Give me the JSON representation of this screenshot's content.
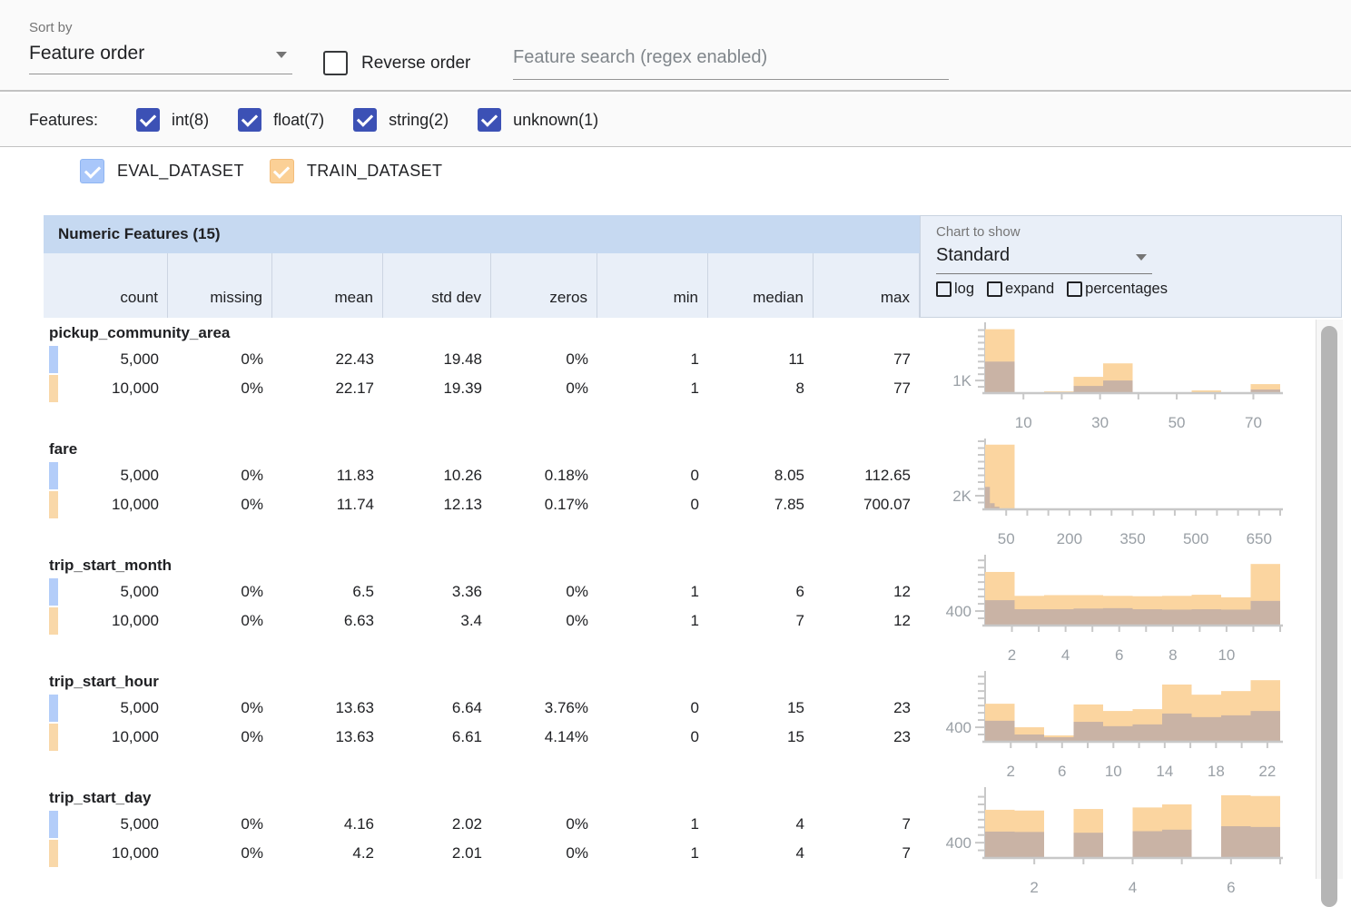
{
  "toolbar": {
    "sort_by_label": "Sort by",
    "sort_by_value": "Feature order",
    "reverse_label": "Reverse order",
    "search_placeholder": "Feature search (regex enabled)"
  },
  "features_bar": {
    "label": "Features:",
    "types": [
      {
        "key": "int",
        "label": "int(8)",
        "checked": true
      },
      {
        "key": "float",
        "label": "float(7)",
        "checked": true
      },
      {
        "key": "string",
        "label": "string(2)",
        "checked": true
      },
      {
        "key": "unknown",
        "label": "unknown(1)",
        "checked": true
      }
    ]
  },
  "datasets": [
    {
      "key": "eval",
      "name": "EVAL_DATASET",
      "checked": true,
      "checkbox_fill": "#a9c7fa",
      "checkbox_border": "#8fb5f2",
      "swatch": "#b3cdf9"
    },
    {
      "key": "train",
      "name": "TRAIN_DATASET",
      "checked": true,
      "checkbox_fill": "#fbd096",
      "checkbox_border": "#f3bd7a",
      "swatch": "#f9d8a9"
    }
  ],
  "table": {
    "title": "Numeric Features (15)",
    "columns": [
      "count",
      "missing",
      "mean",
      "std dev",
      "zeros",
      "min",
      "median",
      "max"
    ]
  },
  "chart_controls": {
    "label": "Chart to show",
    "value": "Standard",
    "options": [
      {
        "key": "log",
        "label": "log",
        "checked": false
      },
      {
        "key": "expand",
        "label": "expand",
        "checked": false
      },
      {
        "key": "percentages",
        "label": "percentages",
        "checked": false
      }
    ]
  },
  "colors": {
    "type_checkbox": "#3c51b5",
    "header_band": "#c6d9f1",
    "subheader_band": "#e9eff8",
    "train_bar": "#fbd5a0",
    "overlap_bar": "#c9b3a5",
    "axis": "#c8c8c8",
    "axis_label": "#9aa0a6"
  },
  "features": [
    {
      "name": "pickup_community_area",
      "rows": [
        {
          "dataset": "eval",
          "values": [
            "5,000",
            "0%",
            "22.43",
            "19.48",
            "0%",
            "1",
            "11",
            "77"
          ]
        },
        {
          "dataset": "train",
          "values": [
            "10,000",
            "0%",
            "22.17",
            "19.39",
            "0%",
            "1",
            "8",
            "77"
          ]
        }
      ],
      "histogram": {
        "y_label": "1K",
        "y_label_value": 1000,
        "y_max": 5400,
        "x_range": [
          0,
          77
        ],
        "x_tick_step": 10,
        "x_labels": [
          10,
          30,
          50,
          70
        ],
        "train_bars": [
          [
            0,
            7.7,
            5070
          ],
          [
            7.7,
            15.4,
            70
          ],
          [
            15.4,
            23.1,
            140
          ],
          [
            23.1,
            30.8,
            1290
          ],
          [
            30.8,
            38.5,
            2360
          ],
          [
            53.9,
            61.6,
            215
          ],
          [
            69.3,
            77,
            715
          ]
        ],
        "overlap_bars": [
          [
            0,
            7.7,
            2500
          ],
          [
            15.4,
            23.1,
            50
          ],
          [
            23.1,
            30.8,
            570
          ],
          [
            30.8,
            38.5,
            1000
          ],
          [
            53.9,
            61.6,
            70
          ],
          [
            69.3,
            77,
            285
          ]
        ]
      }
    },
    {
      "name": "fare",
      "rows": [
        {
          "dataset": "eval",
          "values": [
            "5,000",
            "0%",
            "11.83",
            "10.26",
            "0.18%",
            "0",
            "8.05",
            "112.65"
          ]
        },
        {
          "dataset": "train",
          "values": [
            "10,000",
            "0%",
            "11.74",
            "12.13",
            "0.17%",
            "0",
            "7.85",
            "700.07"
          ]
        }
      ],
      "histogram": {
        "y_label": "2K",
        "y_label_value": 2000,
        "y_max": 10000,
        "x_range": [
          0,
          700
        ],
        "x_tick_step": 50,
        "x_labels": [
          50,
          200,
          350,
          500,
          650
        ],
        "train_bars": [
          [
            0,
            70,
            9500
          ]
        ],
        "overlap_bars": [
          [
            0,
            11.3,
            3300
          ],
          [
            11.3,
            22.6,
            900
          ],
          [
            22.6,
            33.9,
            380
          ]
        ]
      }
    },
    {
      "name": "trip_start_month",
      "rows": [
        {
          "dataset": "eval",
          "values": [
            "5,000",
            "0%",
            "6.5",
            "3.36",
            "0%",
            "1",
            "6",
            "12"
          ]
        },
        {
          "dataset": "train",
          "values": [
            "10,000",
            "0%",
            "6.63",
            "3.4",
            "0%",
            "1",
            "7",
            "12"
          ]
        }
      ],
      "histogram": {
        "y_label": "400",
        "y_label_value": 400,
        "y_max": 1880,
        "x_range": [
          1,
          12
        ],
        "x_tick_step": 1,
        "x_labels": [
          2,
          4,
          6,
          8,
          10
        ],
        "train_bars": [
          [
            1,
            2.1,
            1480
          ],
          [
            2.1,
            3.2,
            820
          ],
          [
            3.2,
            4.3,
            840
          ],
          [
            4.3,
            5.4,
            840
          ],
          [
            5.4,
            6.5,
            820
          ],
          [
            6.5,
            7.6,
            810
          ],
          [
            7.6,
            8.7,
            820
          ],
          [
            8.7,
            9.8,
            850
          ],
          [
            9.8,
            10.9,
            780
          ],
          [
            10.9,
            12,
            1700
          ]
        ],
        "overlap_bars": [
          [
            1,
            2.1,
            700
          ],
          [
            2.1,
            3.2,
            450
          ],
          [
            3.2,
            4.3,
            450
          ],
          [
            4.3,
            5.4,
            470
          ],
          [
            5.4,
            6.5,
            480
          ],
          [
            6.5,
            7.6,
            450
          ],
          [
            7.6,
            8.7,
            440
          ],
          [
            8.7,
            9.8,
            450
          ],
          [
            9.8,
            10.9,
            440
          ],
          [
            10.9,
            12,
            680
          ]
        ]
      }
    },
    {
      "name": "trip_start_hour",
      "rows": [
        {
          "dataset": "eval",
          "values": [
            "5,000",
            "0%",
            "13.63",
            "6.64",
            "3.76%",
            "0",
            "15",
            "23"
          ]
        },
        {
          "dataset": "train",
          "values": [
            "10,000",
            "0%",
            "13.63",
            "6.61",
            "4.14%",
            "0",
            "15",
            "23"
          ]
        }
      ],
      "histogram": {
        "y_label": "400",
        "y_label_value": 400,
        "y_max": 1880,
        "x_range": [
          0,
          23
        ],
        "x_tick_step": 2,
        "x_labels": [
          2,
          6,
          10,
          14,
          18,
          22
        ],
        "train_bars": [
          [
            0,
            2.3,
            1050
          ],
          [
            2.3,
            4.6,
            400
          ],
          [
            4.6,
            6.9,
            175
          ],
          [
            6.9,
            9.2,
            1030
          ],
          [
            9.2,
            11.5,
            850
          ],
          [
            11.5,
            13.8,
            900
          ],
          [
            13.8,
            16.1,
            1580
          ],
          [
            16.1,
            18.4,
            1300
          ],
          [
            18.4,
            20.7,
            1400
          ],
          [
            20.7,
            23,
            1700
          ]
        ],
        "overlap_bars": [
          [
            0,
            2.3,
            580
          ],
          [
            2.3,
            4.6,
            200
          ],
          [
            4.6,
            6.9,
            125
          ],
          [
            6.9,
            9.2,
            550
          ],
          [
            9.2,
            11.5,
            430
          ],
          [
            11.5,
            13.8,
            480
          ],
          [
            13.8,
            16.1,
            780
          ],
          [
            16.1,
            18.4,
            680
          ],
          [
            18.4,
            20.7,
            730
          ],
          [
            20.7,
            23,
            850
          ]
        ]
      }
    },
    {
      "name": "trip_start_day",
      "rows": [
        {
          "dataset": "eval",
          "values": [
            "5,000",
            "0%",
            "4.16",
            "2.02",
            "0%",
            "1",
            "4",
            "7"
          ]
        },
        {
          "dataset": "train",
          "values": [
            "10,000",
            "0%",
            "4.2",
            "2.01",
            "0%",
            "1",
            "4",
            "7"
          ]
        }
      ],
      "histogram": {
        "y_label": "400",
        "y_label_value": 400,
        "y_max": 1780,
        "x_range": [
          1,
          7
        ],
        "x_tick_step": 1,
        "x_labels": [
          2,
          4,
          6
        ],
        "train_bars": [
          [
            1,
            1.6,
            1260
          ],
          [
            1.6,
            2.2,
            1240
          ],
          [
            2.8,
            3.4,
            1280
          ],
          [
            4,
            4.6,
            1320
          ],
          [
            4.6,
            5.2,
            1400
          ],
          [
            5.8,
            6.4,
            1640
          ],
          [
            6.4,
            7,
            1620
          ]
        ],
        "overlap_bars": [
          [
            1,
            1.6,
            690
          ],
          [
            1.6,
            2.2,
            680
          ],
          [
            2.8,
            3.4,
            660
          ],
          [
            4,
            4.6,
            700
          ],
          [
            4.6,
            5.2,
            740
          ],
          [
            5.8,
            6.4,
            830
          ],
          [
            6.4,
            7,
            810
          ]
        ]
      }
    }
  ]
}
